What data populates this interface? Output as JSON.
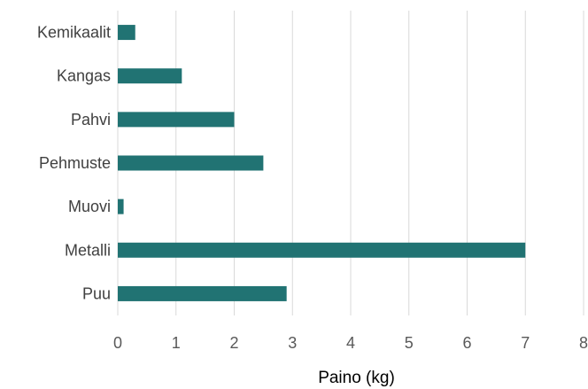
{
  "chart_data": {
    "type": "bar",
    "orientation": "horizontal",
    "categories": [
      "Kemikaalit",
      "Kangas",
      "Pahvi",
      "Pehmuste",
      "Muovi",
      "Metalli",
      "Puu"
    ],
    "values": [
      0.3,
      1.1,
      2.0,
      2.5,
      0.1,
      7.0,
      2.9
    ],
    "title": "",
    "xlabel": "Paino (kg)",
    "ylabel": "",
    "xlim": [
      0,
      8
    ],
    "x_ticks": [
      "0",
      "1",
      "2",
      "3",
      "4",
      "5",
      "6",
      "7",
      "8"
    ],
    "grid": true,
    "legend": "none",
    "colors": {
      "bar": "#217373",
      "grid": "#d9d9d9",
      "label": "#404040",
      "tick": "#595959"
    }
  }
}
